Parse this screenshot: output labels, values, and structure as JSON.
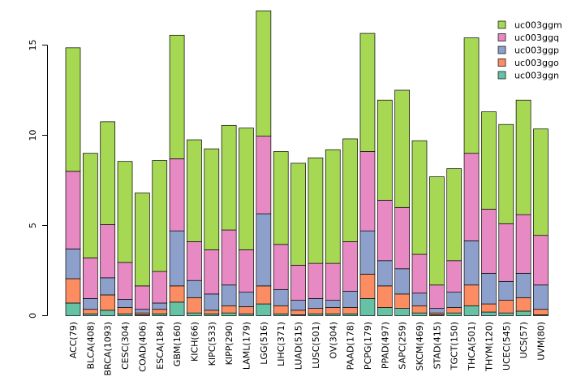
{
  "chart_data": {
    "type": "bar",
    "stacked": true,
    "title": "",
    "xlabel": "",
    "ylabel": "",
    "ylim": [
      0,
      17
    ],
    "y_ticks": [
      0,
      5,
      10,
      15
    ],
    "grid": false,
    "legend_position": "top-right",
    "categories": [
      "ACC(79)",
      "BLCA(408)",
      "BRCA(1093)",
      "CESC(304)",
      "COAD(406)",
      "ESCA(184)",
      "GBM(160)",
      "KICH(66)",
      "KIPC(533)",
      "KIPP(290)",
      "LAML(179)",
      "LGG(516)",
      "LIHC(371)",
      "LUAD(515)",
      "LUSC(501)",
      "OV(304)",
      "PAAD(178)",
      "PCPG(179)",
      "PPAD(497)",
      "SAPC(259)",
      "SKCM(469)",
      "STAD(415)",
      "TGCT(150)",
      "THCA(501)",
      "THYM(120)",
      "UCEC(545)",
      "UCS(57)",
      "UVM(80)"
    ],
    "legend_order": [
      "uc003ggm",
      "uc003ggq",
      "uc003ggp",
      "uc003ggo",
      "uc003ggn"
    ],
    "series": [
      {
        "name": "uc003ggn",
        "color": "#66c2a5",
        "values": [
          0.7,
          0.1,
          0.3,
          0.1,
          0.05,
          0.1,
          0.75,
          0.15,
          0.1,
          0.15,
          0.1,
          0.65,
          0.1,
          0.05,
          0.1,
          0.1,
          0.1,
          0.95,
          0.45,
          0.4,
          0.15,
          0.05,
          0.15,
          0.55,
          0.2,
          0.15,
          0.25,
          0.05
        ]
      },
      {
        "name": "uc003ggo",
        "color": "#fc8d62",
        "values": [
          1.35,
          0.25,
          0.85,
          0.35,
          0.1,
          0.25,
          0.9,
          0.85,
          0.2,
          0.4,
          0.4,
          1.0,
          0.45,
          0.25,
          0.3,
          0.35,
          0.35,
          1.35,
          1.2,
          0.8,
          0.4,
          0.1,
          0.3,
          1.15,
          0.45,
          0.7,
          0.75,
          0.3
        ]
      },
      {
        "name": "uc003ggp",
        "color": "#8da0cb",
        "values": [
          1.65,
          0.6,
          0.95,
          0.45,
          0.2,
          0.35,
          3.05,
          0.95,
          0.9,
          1.15,
          0.8,
          4.0,
          0.9,
          0.55,
          0.55,
          0.4,
          0.9,
          2.4,
          1.4,
          1.4,
          0.7,
          0.25,
          0.85,
          2.45,
          1.7,
          1.05,
          1.35,
          1.35
        ]
      },
      {
        "name": "uc003ggq",
        "color": "#e78ac3",
        "values": [
          4.3,
          2.25,
          2.95,
          2.05,
          1.3,
          1.75,
          4.0,
          2.15,
          2.45,
          3.05,
          2.35,
          4.3,
          2.5,
          1.95,
          1.95,
          2.05,
          2.75,
          4.4,
          3.35,
          3.4,
          2.15,
          1.3,
          1.75,
          4.85,
          3.55,
          3.2,
          3.25,
          2.75
        ]
      },
      {
        "name": "uc003ggm",
        "color": "#a6d854",
        "values": [
          6.85,
          5.8,
          5.7,
          5.6,
          5.15,
          6.15,
          6.85,
          5.65,
          5.6,
          5.8,
          6.75,
          6.95,
          5.15,
          5.65,
          5.85,
          6.3,
          5.7,
          6.55,
          5.55,
          6.5,
          6.3,
          6.0,
          5.1,
          6.4,
          5.4,
          5.5,
          6.35,
          5.9
        ]
      }
    ]
  }
}
